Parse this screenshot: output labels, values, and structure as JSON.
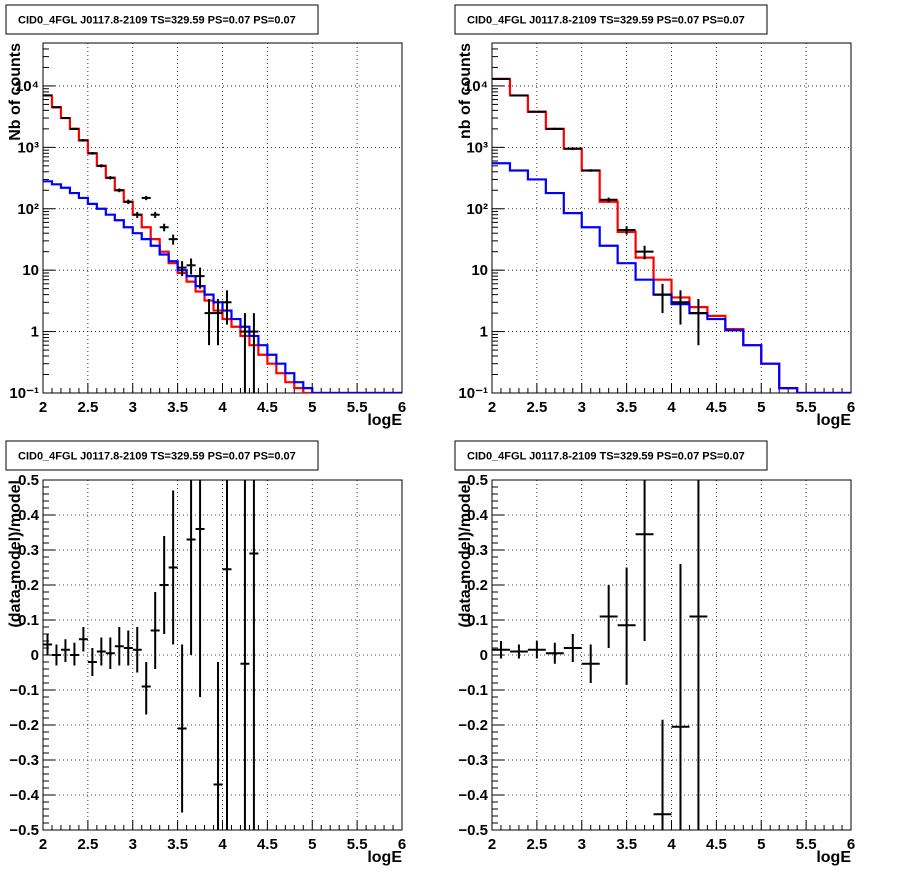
{
  "chart_data": [
    {
      "type": "step-line-with-errorbars",
      "title": "CID0_4FGL J0117.8-2109 TS=329.59 PS=0.07 PS=0.07",
      "xlabel": "logE",
      "ylabel": "Nb of counts",
      "xlim": [
        2,
        6
      ],
      "ylim": [
        0.1,
        50000
      ],
      "yscale": "log",
      "grid": true,
      "x_ticks": [
        "2",
        "2.5",
        "3",
        "3.5",
        "4",
        "4.5",
        "5",
        "5.5",
        "6"
      ],
      "y_ticks": [
        {
          "value": 0.1,
          "label": "10⁻¹"
        },
        {
          "value": 1,
          "label": "1"
        },
        {
          "value": 10,
          "label": "10"
        },
        {
          "value": 100,
          "label": "10²"
        },
        {
          "value": 1000,
          "label": "10³"
        },
        {
          "value": 10000,
          "label": "10⁴"
        }
      ],
      "bin_edges": [
        2.0,
        2.1,
        2.2,
        2.3,
        2.4,
        2.5,
        2.6,
        2.7,
        2.8,
        2.9,
        3.0,
        3.1,
        3.2,
        3.3,
        3.4,
        3.5,
        3.6,
        3.7,
        3.8,
        3.9,
        4.0,
        4.1,
        4.2,
        4.3,
        4.4,
        4.5,
        4.6,
        4.7,
        4.8,
        4.9,
        5.0,
        5.1,
        5.2,
        5.3,
        5.4,
        5.5,
        5.6,
        5.7,
        5.8,
        5.9,
        6.0
      ],
      "series": [
        {
          "color": "#ff0000",
          "values": [
            7000,
            4500,
            3000,
            2000,
            1300,
            800,
            500,
            320,
            200,
            130,
            80,
            50,
            32,
            20,
            13,
            9,
            6.5,
            4.5,
            3.2,
            2.2,
            1.6,
            1.2,
            0.85,
            0.6,
            0.42,
            0.3,
            0.21,
            0.15,
            0.12,
            0.1,
            0.1,
            0.1,
            0.1,
            0.1,
            0.1,
            0.1,
            0.1,
            0.1,
            0.1,
            0.1
          ]
        },
        {
          "color": "#0000ff",
          "values": [
            280,
            250,
            220,
            180,
            150,
            120,
            100,
            80,
            65,
            50,
            40,
            32,
            25,
            18,
            14,
            10,
            8,
            5.5,
            4,
            3,
            2.2,
            1.6,
            1.2,
            0.85,
            0.6,
            0.42,
            0.3,
            0.21,
            0.15,
            0.12,
            0.1,
            0.1,
            0.1,
            0.1,
            0.1,
            0.1,
            0.1,
            0.1,
            0.1,
            0.1
          ]
        }
      ],
      "data_points": [
        {
          "x": 2.05,
          "y": 7000,
          "ylo": 6850,
          "yhi": 7150
        },
        {
          "x": 2.15,
          "y": 4500,
          "ylo": 4380,
          "yhi": 4620
        },
        {
          "x": 2.25,
          "y": 3000,
          "ylo": 2900,
          "yhi": 3100
        },
        {
          "x": 2.35,
          "y": 2000,
          "ylo": 1920,
          "yhi": 2080
        },
        {
          "x": 2.45,
          "y": 1300,
          "ylo": 1240,
          "yhi": 1360
        },
        {
          "x": 2.55,
          "y": 800,
          "ylo": 760,
          "yhi": 840
        },
        {
          "x": 2.65,
          "y": 500,
          "ylo": 470,
          "yhi": 530
        },
        {
          "x": 2.75,
          "y": 320,
          "ylo": 300,
          "yhi": 340
        },
        {
          "x": 2.85,
          "y": 200,
          "ylo": 186,
          "yhi": 214
        },
        {
          "x": 2.95,
          "y": 130,
          "ylo": 119,
          "yhi": 141
        },
        {
          "x": 3.05,
          "y": 80,
          "ylo": 71,
          "yhi": 89
        },
        {
          "x": 3.15,
          "y": 150,
          "ylo": 138,
          "yhi": 162
        },
        {
          "x": 3.25,
          "y": 80,
          "ylo": 71,
          "yhi": 89
        },
        {
          "x": 3.35,
          "y": 50,
          "ylo": 43,
          "yhi": 57
        },
        {
          "x": 3.45,
          "y": 32,
          "ylo": 26,
          "yhi": 38
        },
        {
          "x": 3.55,
          "y": 11,
          "ylo": 8,
          "yhi": 14
        },
        {
          "x": 3.65,
          "y": 12,
          "ylo": 8.5,
          "yhi": 15.5
        },
        {
          "x": 3.75,
          "y": 8,
          "ylo": 5,
          "yhi": 11
        },
        {
          "x": 3.85,
          "y": 2,
          "ylo": 0.6,
          "yhi": 3.4
        },
        {
          "x": 3.95,
          "y": 2,
          "ylo": 0.6,
          "yhi": 3.4
        },
        {
          "x": 4.05,
          "y": 3,
          "ylo": 1.3,
          "yhi": 4.7
        },
        {
          "x": 4.25,
          "y": 1,
          "ylo": 0.1,
          "yhi": 2.0
        },
        {
          "x": 4.35,
          "y": 1,
          "ylo": 0.1,
          "yhi": 2.0
        }
      ]
    },
    {
      "type": "step-line-with-errorbars",
      "title": "CID0_4FGL J0117.8-2109 TS=329.59 PS=0.07 PS=0.07",
      "xlabel": "logE",
      "ylabel": "nb of counts",
      "xlim": [
        2,
        6
      ],
      "ylim": [
        0.1,
        50000
      ],
      "yscale": "log",
      "grid": true,
      "x_ticks": [
        "2",
        "2.5",
        "3",
        "3.5",
        "4",
        "4.5",
        "5",
        "5.5",
        "6"
      ],
      "y_ticks": [
        {
          "value": 0.1,
          "label": "10⁻¹"
        },
        {
          "value": 1,
          "label": "1"
        },
        {
          "value": 10,
          "label": "10"
        },
        {
          "value": 100,
          "label": "10²"
        },
        {
          "value": 1000,
          "label": "10³"
        },
        {
          "value": 10000,
          "label": "10⁴"
        }
      ],
      "bin_edges": [
        2.0,
        2.2,
        2.4,
        2.6,
        2.8,
        3.0,
        3.2,
        3.4,
        3.6,
        3.8,
        4.0,
        4.2,
        4.4,
        4.6,
        4.8,
        5.0,
        5.2,
        5.4,
        5.6,
        5.8,
        6.0
      ],
      "series": [
        {
          "color": "#ff0000",
          "values": [
            13000,
            7000,
            3800,
            2000,
            950,
            420,
            130,
            42,
            16,
            7,
            3.6,
            2.5,
            1.8,
            1.1,
            0.6,
            0.3,
            0.12,
            0.1,
            0.1,
            0.1
          ]
        },
        {
          "color": "#0000ff",
          "values": [
            550,
            420,
            300,
            180,
            85,
            50,
            25,
            13,
            7,
            4,
            2.8,
            2.0,
            1.6,
            1.05,
            0.6,
            0.3,
            0.12,
            0.1,
            0.1,
            0.1
          ]
        }
      ],
      "data_points": [
        {
          "x": 2.1,
          "y": 13000,
          "ylo": 12800,
          "yhi": 13200
        },
        {
          "x": 2.3,
          "y": 7000,
          "ylo": 6850,
          "yhi": 7150
        },
        {
          "x": 2.5,
          "y": 3800,
          "ylo": 3700,
          "yhi": 3900
        },
        {
          "x": 2.7,
          "y": 2000,
          "ylo": 1920,
          "yhi": 2080
        },
        {
          "x": 2.9,
          "y": 950,
          "ylo": 900,
          "yhi": 1000
        },
        {
          "x": 3.1,
          "y": 420,
          "ylo": 400,
          "yhi": 440
        },
        {
          "x": 3.3,
          "y": 140,
          "ylo": 128,
          "yhi": 152
        },
        {
          "x": 3.5,
          "y": 45,
          "ylo": 38,
          "yhi": 52
        },
        {
          "x": 3.7,
          "y": 20,
          "ylo": 15,
          "yhi": 25
        },
        {
          "x": 3.9,
          "y": 4,
          "ylo": 2,
          "yhi": 6
        },
        {
          "x": 4.1,
          "y": 3,
          "ylo": 1.3,
          "yhi": 4.7
        },
        {
          "x": 4.3,
          "y": 2,
          "ylo": 0.6,
          "yhi": 3.4
        }
      ]
    },
    {
      "type": "errorbars",
      "title": "CID0_4FGL J0117.8-2109 TS=329.59 PS=0.07 PS=0.07",
      "xlabel": "logE",
      "ylabel": "(data-model)/model",
      "xlim": [
        2,
        6
      ],
      "ylim": [
        -0.5,
        0.5
      ],
      "yscale": "linear",
      "grid": true,
      "x_ticks": [
        "2",
        "2.5",
        "3",
        "3.5",
        "4",
        "4.5",
        "5",
        "5.5",
        "6"
      ],
      "y_ticks": [
        {
          "value": -0.5,
          "label": "−0.5"
        },
        {
          "value": -0.4,
          "label": "−0.4"
        },
        {
          "value": -0.3,
          "label": "−0.3"
        },
        {
          "value": -0.2,
          "label": "−0.2"
        },
        {
          "value": -0.1,
          "label": "−0.1"
        },
        {
          "value": 0,
          "label": "0"
        },
        {
          "value": 0.1,
          "label": "0.1"
        },
        {
          "value": 0.2,
          "label": "0.2"
        },
        {
          "value": 0.3,
          "label": "0.3"
        },
        {
          "value": 0.4,
          "label": "0.4"
        },
        {
          "value": 0.5,
          "label": "0.5"
        }
      ],
      "half_width": 0.05,
      "data_points": [
        {
          "x": 2.05,
          "y": 0.03,
          "ylo": 0.0,
          "yhi": 0.06
        },
        {
          "x": 2.15,
          "y": 0.0,
          "ylo": -0.03,
          "yhi": 0.03
        },
        {
          "x": 2.25,
          "y": 0.015,
          "ylo": -0.02,
          "yhi": 0.045
        },
        {
          "x": 2.35,
          "y": 0.0,
          "ylo": -0.03,
          "yhi": 0.035
        },
        {
          "x": 2.45,
          "y": 0.045,
          "ylo": 0.01,
          "yhi": 0.08
        },
        {
          "x": 2.55,
          "y": -0.02,
          "ylo": -0.06,
          "yhi": 0.02
        },
        {
          "x": 2.65,
          "y": 0.01,
          "ylo": -0.03,
          "yhi": 0.05
        },
        {
          "x": 2.75,
          "y": 0.005,
          "ylo": -0.04,
          "yhi": 0.05
        },
        {
          "x": 2.85,
          "y": 0.025,
          "ylo": -0.03,
          "yhi": 0.08
        },
        {
          "x": 2.95,
          "y": 0.02,
          "ylo": -0.03,
          "yhi": 0.07
        },
        {
          "x": 3.05,
          "y": 0.015,
          "ylo": -0.05,
          "yhi": 0.08
        },
        {
          "x": 3.15,
          "y": -0.09,
          "ylo": -0.17,
          "yhi": -0.02
        },
        {
          "x": 3.25,
          "y": 0.07,
          "ylo": -0.04,
          "yhi": 0.18
        },
        {
          "x": 3.35,
          "y": 0.2,
          "ylo": 0.06,
          "yhi": 0.34
        },
        {
          "x": 3.45,
          "y": 0.25,
          "ylo": 0.03,
          "yhi": 0.47
        },
        {
          "x": 3.55,
          "y": -0.21,
          "ylo": -0.45,
          "yhi": 0.03
        },
        {
          "x": 3.65,
          "y": 0.33,
          "ylo": 0.0,
          "yhi": 0.5
        },
        {
          "x": 3.75,
          "y": 0.36,
          "ylo": -0.12,
          "yhi": 0.5
        },
        {
          "x": 3.95,
          "y": -0.37,
          "ylo": -0.5,
          "yhi": -0.02
        },
        {
          "x": 4.05,
          "y": 0.245,
          "ylo": -0.5,
          "yhi": 0.5
        },
        {
          "x": 4.25,
          "y": -0.025,
          "ylo": -0.5,
          "yhi": 0.5
        },
        {
          "x": 4.35,
          "y": 0.29,
          "ylo": -0.5,
          "yhi": 0.5
        }
      ]
    },
    {
      "type": "errorbars",
      "title": "CID0_4FGL J0117.8-2109 TS=329.59 PS=0.07 PS=0.07",
      "xlabel": "logE",
      "ylabel": "(data-model)/model",
      "xlim": [
        2,
        6
      ],
      "ylim": [
        -0.5,
        0.5
      ],
      "yscale": "linear",
      "grid": true,
      "x_ticks": [
        "2",
        "2.5",
        "3",
        "3.5",
        "4",
        "4.5",
        "5",
        "5.5",
        "6"
      ],
      "y_ticks": [
        {
          "value": -0.5,
          "label": "−0.5"
        },
        {
          "value": -0.4,
          "label": "−0.4"
        },
        {
          "value": -0.3,
          "label": "−0.3"
        },
        {
          "value": -0.2,
          "label": "−0.2"
        },
        {
          "value": -0.1,
          "label": "−0.1"
        },
        {
          "value": 0,
          "label": "0"
        },
        {
          "value": 0.1,
          "label": "0.1"
        },
        {
          "value": 0.2,
          "label": "0.2"
        },
        {
          "value": 0.3,
          "label": "0.3"
        },
        {
          "value": 0.4,
          "label": "0.4"
        },
        {
          "value": 0.5,
          "label": "0.5"
        }
      ],
      "half_width": 0.1,
      "data_points": [
        {
          "x": 2.1,
          "y": 0.015,
          "ylo": -0.01,
          "yhi": 0.04
        },
        {
          "x": 2.3,
          "y": 0.01,
          "ylo": -0.01,
          "yhi": 0.03
        },
        {
          "x": 2.5,
          "y": 0.015,
          "ylo": -0.01,
          "yhi": 0.04
        },
        {
          "x": 2.7,
          "y": 0.005,
          "ylo": -0.025,
          "yhi": 0.035
        },
        {
          "x": 2.9,
          "y": 0.02,
          "ylo": -0.02,
          "yhi": 0.06
        },
        {
          "x": 3.1,
          "y": -0.025,
          "ylo": -0.08,
          "yhi": 0.03
        },
        {
          "x": 3.3,
          "y": 0.11,
          "ylo": 0.02,
          "yhi": 0.2
        },
        {
          "x": 3.5,
          "y": 0.085,
          "ylo": -0.085,
          "yhi": 0.25
        },
        {
          "x": 3.7,
          "y": 0.345,
          "ylo": 0.04,
          "yhi": 0.5
        },
        {
          "x": 3.9,
          "y": -0.455,
          "ylo": -0.5,
          "yhi": -0.185
        },
        {
          "x": 4.1,
          "y": -0.205,
          "ylo": -0.5,
          "yhi": 0.26
        },
        {
          "x": 4.3,
          "y": 0.11,
          "ylo": -0.5,
          "yhi": 0.5
        }
      ]
    }
  ]
}
